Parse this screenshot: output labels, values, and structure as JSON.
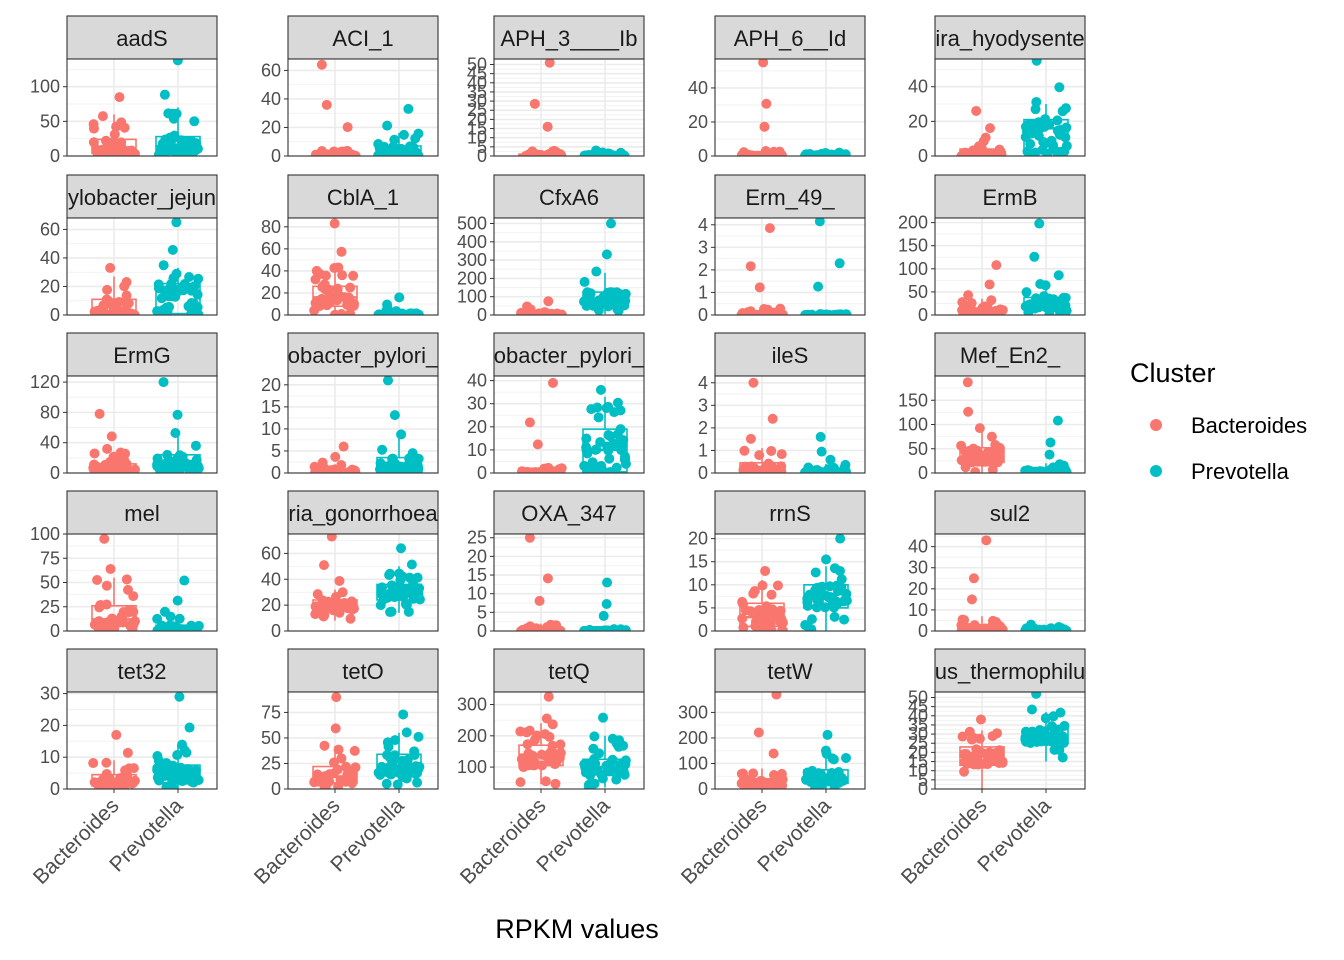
{
  "chart_data": {
    "type": "scatter",
    "facet_layout": {
      "rows": 5,
      "cols": 5
    },
    "categories": [
      "Bacteroides",
      "Prevotella"
    ],
    "xlabel": "RPKM values",
    "legend": {
      "title": "Cluster",
      "position": "right",
      "entries": [
        "Bacteroides",
        "Prevotella"
      ]
    },
    "colors": {
      "Bacteroides": "#F8766D",
      "Prevotella": "#00BFC4"
    },
    "grid": true,
    "panels": [
      {
        "title": "aadS",
        "ylim": [
          0,
          140
        ],
        "yticks": [
          0,
          50,
          100
        ],
        "series": [
          {
            "name": "Bacteroides",
            "box": [
              0,
              4,
              10,
              24,
              60
            ],
            "max": 85
          },
          {
            "name": "Prevotella",
            "box": [
              0,
              6,
              14,
              28,
              70
            ],
            "max": 138
          }
        ]
      },
      {
        "title": "ACI_1",
        "ylim": [
          0,
          68
        ],
        "yticks": [
          0,
          20,
          40,
          60
        ],
        "series": [
          {
            "name": "Bacteroides",
            "box": [
              0,
              0,
              0.5,
              1.5,
              4
            ],
            "max": 64
          },
          {
            "name": "Prevotella",
            "box": [
              0,
              1,
              3,
              7,
              16
            ],
            "max": 33
          }
        ]
      },
      {
        "title": "APH_3____Ib",
        "ylim": [
          0,
          53
        ],
        "yticks": [
          0,
          5,
          10,
          15,
          20,
          25,
          30,
          35,
          40,
          45,
          50
        ],
        "series": [
          {
            "name": "Bacteroides",
            "box": [
              0,
              0,
              0.3,
              1,
              3
            ],
            "max": 51
          },
          {
            "name": "Prevotella",
            "box": [
              0,
              0,
              0.2,
              0.6,
              2
            ],
            "max": 3
          }
        ]
      },
      {
        "title": "APH_6__Id",
        "ylim": [
          0,
          57
        ],
        "yticks": [
          0,
          20,
          40
        ],
        "series": [
          {
            "name": "Bacteroides",
            "box": [
              0,
              0,
              0.3,
              1,
              3
            ],
            "max": 55
          },
          {
            "name": "Prevotella",
            "box": [
              0,
              0,
              0.2,
              0.6,
              2
            ],
            "max": 2
          }
        ]
      },
      {
        "title": "ira_hyodysente",
        "ylim": [
          0,
          56
        ],
        "yticks": [
          0,
          20,
          40
        ],
        "series": [
          {
            "name": "Bacteroides",
            "box": [
              0,
              0,
              1,
              4,
              10
            ],
            "max": 26
          },
          {
            "name": "Prevotella",
            "box": [
              0,
              2,
              16,
              21,
              30
            ],
            "max": 55
          }
        ]
      },
      {
        "title": "ylobacter_jejun",
        "ylim": [
          0,
          68
        ],
        "yticks": [
          0,
          20,
          40,
          60
        ],
        "series": [
          {
            "name": "Bacteroides",
            "box": [
              0,
              0,
              3,
              11,
              27
            ],
            "max": 33
          },
          {
            "name": "Prevotella",
            "box": [
              0,
              1,
              17,
              22,
              33
            ],
            "max": 65
          }
        ]
      },
      {
        "title": "CblA_1",
        "ylim": [
          0,
          88
        ],
        "yticks": [
          0,
          20,
          40,
          60,
          80
        ],
        "series": [
          {
            "name": "Bacteroides",
            "box": [
              0,
              8,
              16,
              26,
              44
            ],
            "max": 83
          },
          {
            "name": "Prevotella",
            "box": [
              0,
              0,
              0.5,
              1.5,
              4
            ],
            "max": 16
          }
        ]
      },
      {
        "title": "CfxA6",
        "ylim": [
          0,
          530
        ],
        "yticks": [
          0,
          100,
          200,
          300,
          400,
          500
        ],
        "series": [
          {
            "name": "Bacteroides",
            "box": [
              0,
              0,
              3,
              12,
              28
            ],
            "max": 75
          },
          {
            "name": "Prevotella",
            "box": [
              5,
              50,
              85,
              125,
              230
            ],
            "max": 500
          }
        ]
      },
      {
        "title": "Erm_49_",
        "ylim": [
          0,
          4.3
        ],
        "yticks": [
          0,
          1,
          2,
          3,
          4
        ],
        "series": [
          {
            "name": "Bacteroides",
            "box": [
              0,
              0,
              0.02,
              0.1,
              0.3
            ],
            "max": 3.85
          },
          {
            "name": "Prevotella",
            "box": [
              0,
              0,
              0,
              0.02,
              0.05
            ],
            "max": 4.15
          }
        ]
      },
      {
        "title": "ErmB",
        "ylim": [
          0,
          210
        ],
        "yticks": [
          0,
          50,
          100,
          150,
          200
        ],
        "series": [
          {
            "name": "Bacteroides",
            "box": [
              0,
              2,
              6,
              15,
              35
            ],
            "max": 108
          },
          {
            "name": "Prevotella",
            "box": [
              0,
              12,
              22,
              38,
              70
            ],
            "max": 198
          }
        ]
      },
      {
        "title": "ErmG",
        "ylim": [
          0,
          128
        ],
        "yticks": [
          0,
          40,
          80,
          120
        ],
        "series": [
          {
            "name": "Bacteroides",
            "box": [
              0,
              2,
              5,
              12,
              28
            ],
            "max": 78
          },
          {
            "name": "Prevotella",
            "box": [
              0,
              5,
              12,
              24,
              50
            ],
            "max": 120
          }
        ]
      },
      {
        "title": "obacter_pylori_",
        "ylim": [
          0,
          22
        ],
        "yticks": [
          0,
          5,
          10,
          15,
          20
        ],
        "series": [
          {
            "name": "Bacteroides",
            "box": [
              0,
              0,
              0.2,
              0.8,
              2
            ],
            "max": 6
          },
          {
            "name": "Prevotella",
            "box": [
              0,
              0.3,
              1.5,
              3.5,
              8
            ],
            "max": 21
          }
        ]
      },
      {
        "title": "obacter_pylori_",
        "ylim": [
          0,
          42
        ],
        "yticks": [
          0,
          10,
          20,
          30,
          40
        ],
        "series": [
          {
            "name": "Bacteroides",
            "box": [
              0,
              0,
              0.3,
              1,
              3
            ],
            "max": 39
          },
          {
            "name": "Prevotella",
            "box": [
              0,
              0.5,
              10,
              19,
              33
            ],
            "max": 36
          }
        ]
      },
      {
        "title": "ileS",
        "ylim": [
          0,
          4.3
        ],
        "yticks": [
          0,
          1,
          2,
          3,
          4
        ],
        "series": [
          {
            "name": "Bacteroides",
            "box": [
              0,
              0.03,
              0.12,
              0.45,
              1.1
            ],
            "max": 4
          },
          {
            "name": "Prevotella",
            "box": [
              0,
              0.01,
              0.04,
              0.15,
              0.4
            ],
            "max": 1.6
          }
        ]
      },
      {
        "title": "Mef_En2_",
        "ylim": [
          0,
          200
        ],
        "yticks": [
          0,
          50,
          100,
          150
        ],
        "series": [
          {
            "name": "Bacteroides",
            "box": [
              0,
              22,
              32,
              52,
              95
            ],
            "max": 187
          },
          {
            "name": "Prevotella",
            "box": [
              0,
              1,
              3,
              8,
              20
            ],
            "max": 108
          }
        ]
      },
      {
        "title": "mel",
        "ylim": [
          0,
          100
        ],
        "yticks": [
          0,
          25,
          50,
          75,
          100
        ],
        "series": [
          {
            "name": "Bacteroides",
            "box": [
              0,
              5,
              12,
              26,
              55
            ],
            "max": 95
          },
          {
            "name": "Prevotella",
            "box": [
              0,
              0.5,
              2,
              6,
              15
            ],
            "max": 52
          }
        ]
      },
      {
        "title": "ria_gonorrhoea",
        "ylim": [
          0,
          75
        ],
        "yticks": [
          0,
          20,
          40,
          60
        ],
        "series": [
          {
            "name": "Bacteroides",
            "box": [
              8,
              16,
              20,
              24,
              32
            ],
            "max": 73
          },
          {
            "name": "Prevotella",
            "box": [
              14,
              24,
              30,
              36,
              50
            ],
            "max": 64
          }
        ]
      },
      {
        "title": "OXA_347",
        "ylim": [
          0,
          26
        ],
        "yticks": [
          0,
          5,
          10,
          15,
          20,
          25
        ],
        "series": [
          {
            "name": "Bacteroides",
            "box": [
              0,
              0,
              0.2,
              0.8,
              2
            ],
            "max": 25
          },
          {
            "name": "Prevotella",
            "box": [
              0,
              0,
              0.05,
              0.2,
              0.5
            ],
            "max": 13
          }
        ]
      },
      {
        "title": "rrnS",
        "ylim": [
          0,
          21
        ],
        "yticks": [
          0,
          5,
          10,
          15,
          20
        ],
        "series": [
          {
            "name": "Bacteroides",
            "box": [
              0,
              1,
              3,
              6,
              11
            ],
            "max": 13
          },
          {
            "name": "Prevotella",
            "box": [
              0,
              5,
              8,
              10,
              14
            ],
            "max": 20
          }
        ]
      },
      {
        "title": "sul2",
        "ylim": [
          0,
          46
        ],
        "yticks": [
          0,
          10,
          20,
          30,
          40
        ],
        "series": [
          {
            "name": "Bacteroides",
            "box": [
              0,
              0.2,
              1,
              3,
              7
            ],
            "max": 43
          },
          {
            "name": "Prevotella",
            "box": [
              0,
              0,
              0.2,
              0.6,
              1.5
            ],
            "max": 3
          }
        ]
      },
      {
        "title": "tet32",
        "ylim": [
          0,
          30.5
        ],
        "yticks": [
          0,
          10,
          20,
          30
        ],
        "series": [
          {
            "name": "Bacteroides",
            "box": [
              0,
              1,
              2.5,
              4.5,
              9
            ],
            "max": 17
          },
          {
            "name": "Prevotella",
            "box": [
              0,
              2,
              4.5,
              7.5,
              14
            ],
            "max": 29
          }
        ]
      },
      {
        "title": "tetO",
        "ylim": [
          0,
          95
        ],
        "yticks": [
          0,
          25,
          50,
          75
        ],
        "series": [
          {
            "name": "Bacteroides",
            "box": [
              0,
              6,
              12,
              22,
              42
            ],
            "max": 90
          },
          {
            "name": "Prevotella",
            "box": [
              0,
              14,
              22,
              34,
              55
            ],
            "max": 73
          }
        ]
      },
      {
        "title": "tetQ",
        "ylim": [
          30,
          340
        ],
        "yticks": [
          100,
          200,
          300
        ],
        "series": [
          {
            "name": "Bacteroides",
            "box": [
              45,
              105,
              140,
              170,
              240
            ],
            "max": 325
          },
          {
            "name": "Prevotella",
            "box": [
              35,
              75,
              100,
              125,
              200
            ],
            "max": 258
          }
        ]
      },
      {
        "title": "tetW",
        "ylim": [
          0,
          380
        ],
        "yticks": [
          0,
          100,
          200,
          300
        ],
        "series": [
          {
            "name": "Bacteroides",
            "box": [
              0,
              10,
              22,
              40,
              80
            ],
            "max": 370
          },
          {
            "name": "Prevotella",
            "box": [
              0,
              22,
              45,
              75,
              140
            ],
            "max": 212
          }
        ]
      },
      {
        "title": "us_thermophilu",
        "ylim": [
          0,
          53
        ],
        "yticks": [
          0,
          5,
          10,
          15,
          20,
          25,
          30,
          35,
          40,
          45,
          50
        ],
        "series": [
          {
            "name": "Bacteroides",
            "box": [
              0,
              13,
              19,
              23,
              32
            ],
            "max": 38
          },
          {
            "name": "Prevotella",
            "box": [
              15,
              25,
              29,
              33,
              42
            ],
            "max": 52
          }
        ]
      }
    ]
  }
}
